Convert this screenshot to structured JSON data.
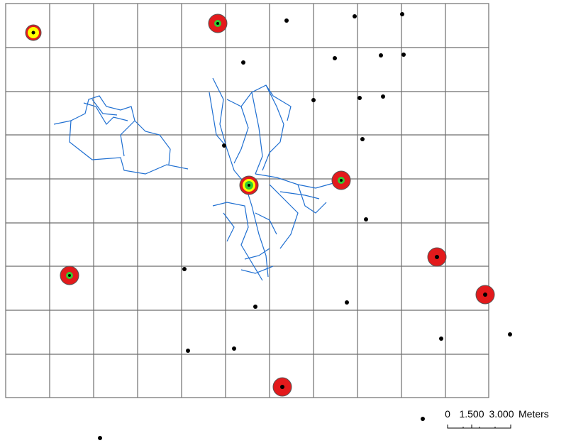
{
  "scale_bar": {
    "labels": [
      "0",
      "1.500",
      "3.000"
    ],
    "unit": "Meters"
  }
}
